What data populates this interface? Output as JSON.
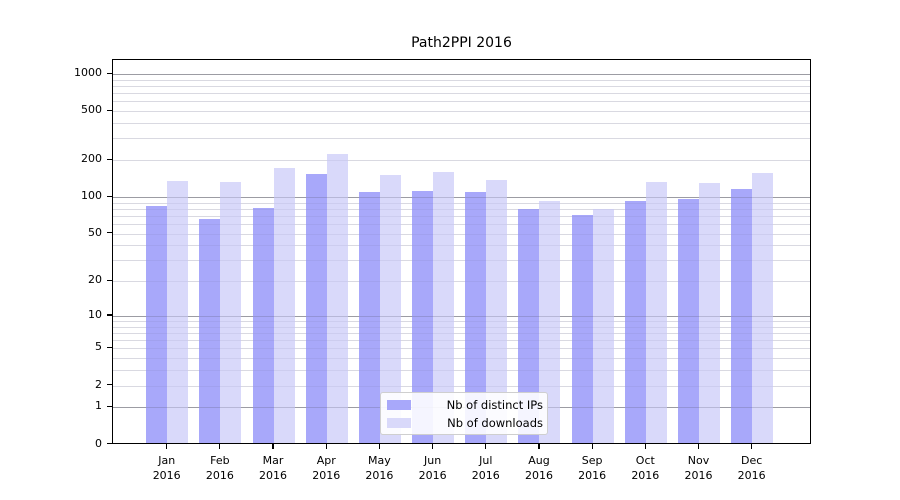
{
  "chart_data": {
    "type": "bar",
    "title": "Path2PPI 2016",
    "categories": [
      "Jan 2016",
      "Feb 2016",
      "Mar 2016",
      "Apr 2016",
      "May 2016",
      "Jun 2016",
      "Jul 2016",
      "Aug 2016",
      "Sep 2016",
      "Oct 2016",
      "Nov 2016",
      "Dec 2016"
    ],
    "month_labels": [
      "Jan",
      "Feb",
      "Mar",
      "Apr",
      "May",
      "Jun",
      "Jul",
      "Aug",
      "Sep",
      "Oct",
      "Nov",
      "Dec"
    ],
    "year_label": "2016",
    "series": [
      {
        "name": "Nb of distinct IPs",
        "color": "#a8a8fa",
        "values": [
          84,
          65,
          80,
          152,
          109,
          110,
          108,
          79,
          70,
          92,
          95,
          115
        ]
      },
      {
        "name": "Nb of downloads",
        "color": "#d9d9fa",
        "values": [
          134,
          130,
          169,
          220,
          150,
          158,
          135,
          92,
          79,
          131,
          128,
          154
        ]
      }
    ],
    "xlabel": "",
    "ylabel": "",
    "y_scale": "log10(value+1)",
    "y_tick_values": [
      0,
      1,
      2,
      5,
      10,
      20,
      50,
      100,
      200,
      500,
      1000
    ],
    "y_major_grid_values": [
      1,
      10,
      100,
      1000
    ],
    "y_minor_grid_values": [
      2,
      3,
      4,
      5,
      6,
      7,
      8,
      9,
      20,
      30,
      40,
      50,
      60,
      70,
      80,
      90,
      200,
      300,
      400,
      500,
      600,
      700,
      800,
      900
    ],
    "ylim": [
      0,
      1300
    ],
    "grid": "horizontal, major and minor, on",
    "legend_position": "lower center inside plot",
    "colors": {
      "major_grid": "#b4b4b4",
      "minor_grid": "#e6e6ea",
      "axis": "#000000",
      "background": "#ffffff"
    }
  }
}
